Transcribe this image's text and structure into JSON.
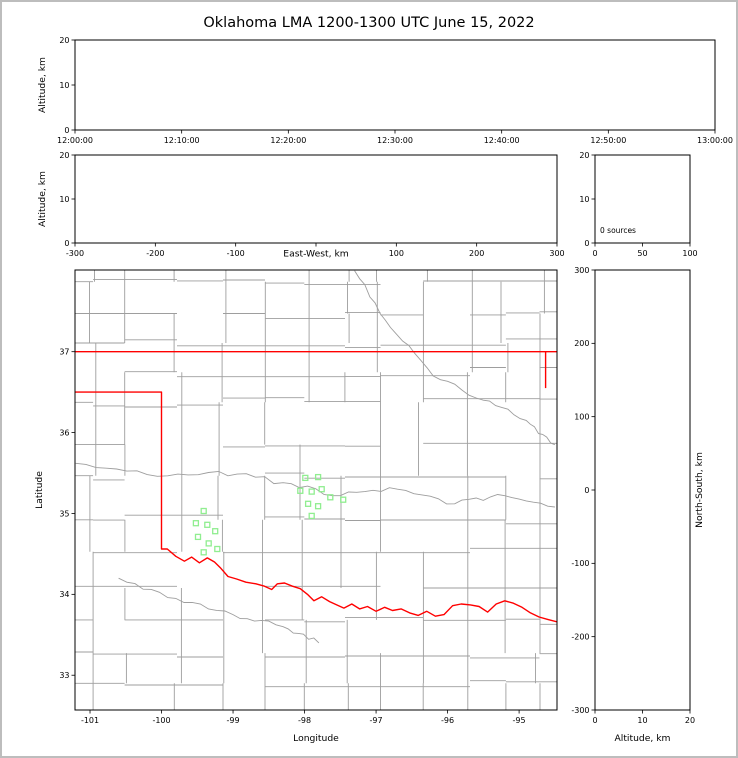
{
  "title": "Oklahoma LMA 1200-1300 UTC June 15, 2022",
  "colors": {
    "axes": "#000000",
    "state_border": "#ff0000",
    "county_lines": "#9e9e9e",
    "station_marker": "#90ee90",
    "figure_border": "#bdbdbd",
    "background": "#ffffff"
  },
  "chart_data": [
    {
      "id": "time_height_panel",
      "type": "scatter",
      "xlabel": "",
      "ylabel": "Altitude, km",
      "xticklabels": [
        "12:00:00",
        "12:10:00",
        "12:20:00",
        "12:30:00",
        "12:40:00",
        "12:50:00",
        "13:00:00"
      ],
      "yticks": [
        0,
        10,
        20
      ],
      "ylim": [
        0,
        20
      ],
      "points": []
    },
    {
      "id": "east_west_height_panel",
      "type": "scatter",
      "xlabel": "East-West, km",
      "ylabel": "Altitude, km",
      "xticks": [
        -300,
        -200,
        -100,
        0,
        100,
        200,
        300
      ],
      "xticklabels": [
        "-300",
        "-200",
        "-100",
        "",
        "100",
        "200",
        "300"
      ],
      "yticks": [
        0,
        10,
        20
      ],
      "xlim": [
        -300,
        300
      ],
      "ylim": [
        0,
        20
      ],
      "points": []
    },
    {
      "id": "source_count_panel",
      "type": "line",
      "annotation": "0 sources",
      "xticks": [
        0,
        50,
        100
      ],
      "yticks": [
        0,
        10,
        20
      ],
      "xlim": [
        0,
        100
      ],
      "ylim": [
        0,
        20
      ],
      "points": []
    },
    {
      "id": "plan_view_map_panel",
      "type": "scatter",
      "xlabel": "Longitude",
      "ylabel": "Latitude",
      "xticks": [
        -101,
        -100,
        -99,
        -98,
        -97,
        -96,
        -95
      ],
      "yticks": [
        33,
        34,
        35,
        36,
        37
      ],
      "xlim": [
        -101.21,
        -94.47
      ],
      "ylim": [
        32.57,
        38.01
      ],
      "points": [],
      "stations": [
        [
          -97.99,
          35.44
        ],
        [
          -97.81,
          35.45
        ],
        [
          -98.06,
          35.28
        ],
        [
          -97.9,
          35.27
        ],
        [
          -97.76,
          35.3
        ],
        [
          -97.64,
          35.2
        ],
        [
          -97.46,
          35.17
        ],
        [
          -97.95,
          35.12
        ],
        [
          -97.81,
          35.09
        ],
        [
          -97.9,
          34.97
        ],
        [
          -99.41,
          35.03
        ],
        [
          -99.52,
          34.88
        ],
        [
          -99.36,
          34.86
        ],
        [
          -99.25,
          34.78
        ],
        [
          -99.49,
          34.71
        ],
        [
          -99.34,
          34.63
        ],
        [
          -99.22,
          34.56
        ],
        [
          -99.41,
          34.52
        ]
      ],
      "state_border": [
        [
          [
            -101.21,
            37.0
          ],
          [
            -94.47,
            37.0
          ]
        ],
        [
          [
            -94.63,
            37.0
          ],
          [
            -94.63,
            36.55
          ]
        ],
        [
          [
            -101.21,
            36.5
          ],
          [
            -100.0,
            36.5
          ],
          [
            -100.0,
            34.56
          ],
          [
            -99.92,
            34.56
          ],
          [
            -99.8,
            34.47
          ],
          [
            -99.68,
            34.41
          ],
          [
            -99.58,
            34.46
          ],
          [
            -99.47,
            34.39
          ],
          [
            -99.36,
            34.45
          ],
          [
            -99.26,
            34.4
          ],
          [
            -99.18,
            34.33
          ],
          [
            -99.07,
            34.22
          ],
          [
            -98.95,
            34.19
          ],
          [
            -98.82,
            34.15
          ],
          [
            -98.68,
            34.13
          ],
          [
            -98.56,
            34.1
          ],
          [
            -98.46,
            34.06
          ],
          [
            -98.38,
            34.13
          ],
          [
            -98.28,
            34.14
          ],
          [
            -98.17,
            34.1
          ],
          [
            -98.06,
            34.07
          ],
          [
            -97.96,
            34.0
          ],
          [
            -97.87,
            33.92
          ],
          [
            -97.76,
            33.97
          ],
          [
            -97.65,
            33.91
          ],
          [
            -97.55,
            33.87
          ],
          [
            -97.45,
            33.83
          ],
          [
            -97.34,
            33.88
          ],
          [
            -97.23,
            33.82
          ],
          [
            -97.12,
            33.85
          ],
          [
            -97.0,
            33.79
          ],
          [
            -96.88,
            33.84
          ],
          [
            -96.77,
            33.8
          ],
          [
            -96.65,
            33.82
          ],
          [
            -96.53,
            33.77
          ],
          [
            -96.41,
            33.74
          ],
          [
            -96.29,
            33.79
          ],
          [
            -96.17,
            33.73
          ],
          [
            -96.05,
            33.75
          ],
          [
            -95.93,
            33.86
          ],
          [
            -95.81,
            33.88
          ],
          [
            -95.68,
            33.87
          ],
          [
            -95.56,
            33.85
          ],
          [
            -95.44,
            33.78
          ],
          [
            -95.32,
            33.88
          ],
          [
            -95.2,
            33.92
          ],
          [
            -95.08,
            33.89
          ],
          [
            -94.96,
            33.84
          ],
          [
            -94.84,
            33.77
          ],
          [
            -94.72,
            33.72
          ],
          [
            -94.6,
            33.69
          ],
          [
            -94.47,
            33.66
          ]
        ]
      ],
      "rivers": [
        [
          [
            -101.2,
            35.62
          ],
          [
            -100.2,
            35.48
          ],
          [
            -99.2,
            35.52
          ],
          [
            -98.3,
            35.38
          ],
          [
            -97.5,
            35.22
          ],
          [
            -96.7,
            35.3
          ],
          [
            -95.9,
            35.12
          ],
          [
            -95.2,
            35.22
          ],
          [
            -94.5,
            35.08
          ]
        ],
        [
          [
            -97.3,
            38.0
          ],
          [
            -96.8,
            37.3
          ],
          [
            -96.2,
            36.7
          ],
          [
            -95.5,
            36.4
          ],
          [
            -94.9,
            36.15
          ],
          [
            -94.5,
            35.85
          ]
        ],
        [
          [
            -100.6,
            34.2
          ],
          [
            -99.8,
            33.95
          ],
          [
            -99.0,
            33.75
          ],
          [
            -98.3,
            33.6
          ],
          [
            -97.8,
            33.4
          ]
        ]
      ]
    },
    {
      "id": "north_south_height_panel",
      "type": "scatter",
      "xlabel": "Altitude, km",
      "ylabel": "North-South, km",
      "xticks": [
        0,
        10,
        20
      ],
      "yticks": [
        -300,
        -200,
        -100,
        0,
        100,
        200,
        300
      ],
      "xlim": [
        0,
        20
      ],
      "ylim": [
        -300,
        300
      ],
      "points": []
    }
  ]
}
